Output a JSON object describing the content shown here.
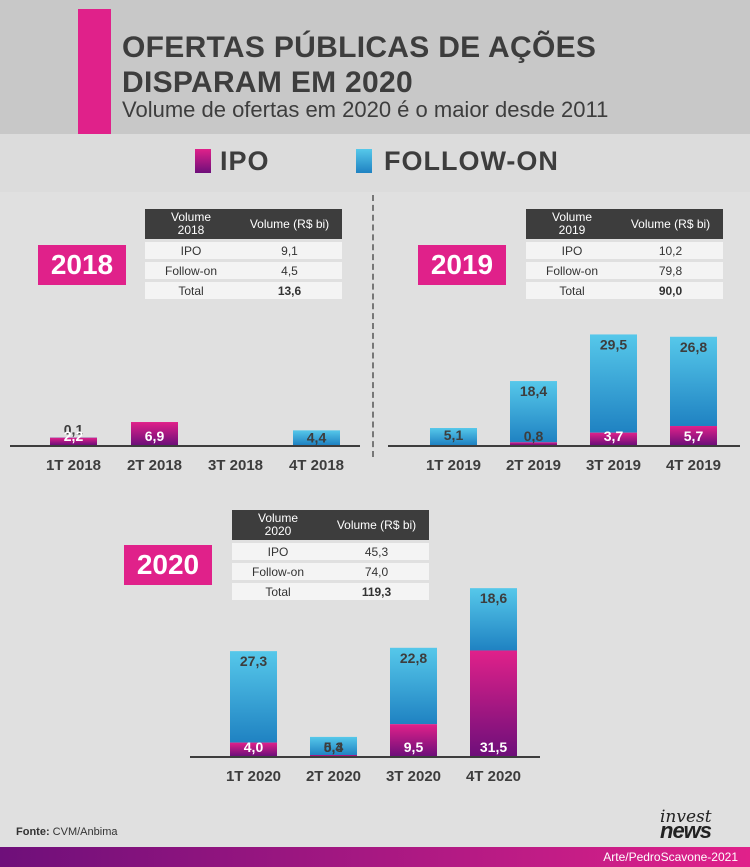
{
  "header": {
    "title_line1": "OFERTAS PÚBLICAS DE AÇÕES",
    "title_line2": "DISPARAM EM 2020",
    "subtitle": "Volume de ofertas em 2020 é o maior desde 2011"
  },
  "legend": {
    "ipo": "IPO",
    "followon": "FOLLOW-ON"
  },
  "colors": {
    "magenta": "#e0218a",
    "purple": "#6e0f7a",
    "blue_light": "#56c8ea",
    "blue_dark": "#1f82c2",
    "dark": "#3d3d3d",
    "accent": "#e0218a"
  },
  "tables": [
    {
      "head_vol": "Volume",
      "year": "2018",
      "head_rs": "Volume (R$ bi)",
      "rows": [
        [
          "IPO",
          "9,1"
        ],
        [
          "Follow-on",
          "4,5"
        ],
        [
          "Total",
          "13,6"
        ]
      ]
    },
    {
      "head_vol": "Volume",
      "year": "2019",
      "head_rs": "Volume (R$ bi)",
      "rows": [
        [
          "IPO",
          "10,2"
        ],
        [
          "Follow-on",
          "79,8"
        ],
        [
          "Total",
          "90,0"
        ]
      ]
    },
    {
      "head_vol": "Volume",
      "year": "2020",
      "head_rs": "Volume (R$ bi)",
      "rows": [
        [
          "IPO",
          "45,3"
        ],
        [
          "Follow-on",
          "74,0"
        ],
        [
          "Total",
          "119,3"
        ]
      ]
    }
  ],
  "chart_data": [
    {
      "type": "bar",
      "stacked": true,
      "badge": "2018",
      "categories": [
        "1T 2018",
        "2T 2018",
        "3T 2018",
        "4T 2018"
      ],
      "series": [
        {
          "name": "IPO",
          "values": [
            2.2,
            6.9,
            0,
            0
          ],
          "labels": [
            "2,2",
            "6,9",
            "",
            ""
          ]
        },
        {
          "name": "Follow-on",
          "values": [
            0.1,
            0,
            0,
            4.4
          ],
          "labels": [
            "0,1",
            "",
            "",
            "4,4"
          ]
        }
      ]
    },
    {
      "type": "bar",
      "stacked": true,
      "badge": "2019",
      "categories": [
        "1T 2019",
        "2T 2019",
        "3T 2019",
        "4T 2019"
      ],
      "series": [
        {
          "name": "IPO",
          "values": [
            0,
            0.8,
            3.7,
            5.7
          ],
          "labels": [
            "",
            "0,8",
            "3,7",
            "5,7"
          ]
        },
        {
          "name": "Follow-on",
          "values": [
            5.1,
            18.4,
            29.5,
            26.8
          ],
          "labels": [
            "5,1",
            "18,4",
            "29,5",
            "26,8"
          ]
        }
      ]
    },
    {
      "type": "bar",
      "stacked": true,
      "badge": "2020",
      "categories": [
        "1T 2020",
        "2T 2020",
        "3T 2020",
        "4T 2020"
      ],
      "series": [
        {
          "name": "IPO",
          "values": [
            4.0,
            0.3,
            9.5,
            31.5
          ],
          "labels": [
            "4,0",
            "0,3",
            "9,5",
            "31,5"
          ]
        },
        {
          "name": "Follow-on",
          "values": [
            27.3,
            5.4,
            22.8,
            18.6
          ],
          "labels": [
            "27,3",
            "5,4",
            "22,8",
            "18,6"
          ]
        }
      ]
    }
  ],
  "footer": {
    "source_label": "Fonte:",
    "source_text": "CVM/Anbima",
    "logo_line1": "invest",
    "logo_line2": "news",
    "credit": "Arte/PedroScavone-2021"
  }
}
